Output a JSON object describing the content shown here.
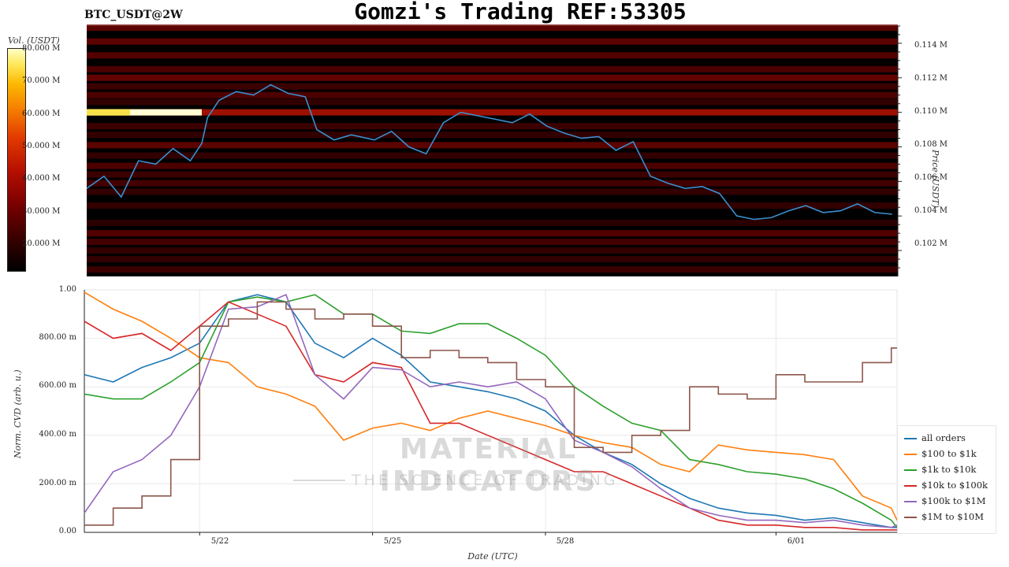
{
  "header": {
    "symbol": "BTC_USDT@2W",
    "title": "Gomzi's Trading REF:53305"
  },
  "colors": {
    "heatmap_background": "#000000",
    "price_line": "#3b8fd0",
    "grid": "#e9e9e9"
  },
  "chart_data": [
    {
      "type": "heatmap",
      "title": "Gomzi's Trading REF:53305",
      "colorbar_label": "Vol. (USDT)",
      "colorbar_ticks": [
        "20.000 M",
        "30.000 M",
        "40.000 M",
        "50.000 M",
        "60.000 M",
        "70.000 M",
        "80.000 M"
      ],
      "ylabel": "Price (USDT)",
      "y_ticks": [
        "0.102 M",
        "0.104 M",
        "0.106 M",
        "0.108 M",
        "0.110 M",
        "0.112 M",
        "0.114 M"
      ],
      "ylim": [
        100500,
        115000
      ],
      "price_series": {
        "name": "price",
        "x_days": [
          0,
          0.3,
          0.6,
          0.9,
          1.2,
          1.5,
          1.8,
          2.0,
          2.1,
          2.3,
          2.6,
          2.9,
          3.2,
          3.5,
          3.8,
          4.0,
          4.3,
          4.6,
          5.0,
          5.3,
          5.6,
          5.9,
          6.2,
          6.5,
          6.8,
          7.1,
          7.4,
          7.7,
          8.0,
          8.3,
          8.6,
          8.9,
          9.2,
          9.5,
          9.8,
          10.1,
          10.4,
          10.7,
          11.0,
          11.3,
          11.6,
          11.9,
          12.2,
          12.5,
          12.8,
          13.1,
          13.4,
          13.7,
          14.0
        ],
        "values": [
          105600,
          106300,
          105100,
          107200,
          107000,
          107900,
          107200,
          108200,
          109700,
          110700,
          111200,
          111000,
          111600,
          111100,
          110900,
          109000,
          108400,
          108700,
          108400,
          108900,
          108000,
          107600,
          109400,
          110000,
          109800,
          109600,
          109400,
          109900,
          109200,
          108800,
          108500,
          108600,
          107800,
          108300,
          106300,
          105900,
          105600,
          105700,
          105300,
          104000,
          103800,
          103900,
          104300,
          104600,
          104200,
          104300,
          104700,
          104200,
          104100
        ]
      },
      "volume_bands": [
        {
          "price": 114900,
          "level": 0.55
        },
        {
          "price": 114100,
          "level": 0.55
        },
        {
          "price": 113300,
          "level": 0.5
        },
        {
          "price": 112500,
          "level": 0.45
        },
        {
          "price": 112000,
          "level": 0.6
        },
        {
          "price": 111500,
          "level": 0.35
        },
        {
          "price": 111000,
          "level": 0.45
        },
        {
          "price": 110600,
          "level": 0.3
        },
        {
          "price": 110000,
          "level": 1.0
        },
        {
          "price": 109200,
          "level": 0.35
        },
        {
          "price": 108700,
          "level": 0.3
        },
        {
          "price": 108100,
          "level": 0.55
        },
        {
          "price": 107500,
          "level": 0.3
        },
        {
          "price": 106900,
          "level": 0.45
        },
        {
          "price": 106400,
          "level": 0.35
        },
        {
          "price": 105900,
          "level": 0.4
        },
        {
          "price": 105400,
          "level": 0.3
        },
        {
          "price": 104600,
          "level": 0.3
        },
        {
          "price": 103600,
          "level": 0.25
        },
        {
          "price": 103000,
          "level": 0.5
        },
        {
          "price": 102500,
          "level": 0.4
        },
        {
          "price": 102000,
          "level": 0.3
        },
        {
          "price": 101500,
          "level": 0.3
        },
        {
          "price": 100900,
          "level": 0.35
        }
      ]
    },
    {
      "type": "line",
      "xlabel": "Date (UTC)",
      "ylabel": "Norm. CVD (arb. u.)",
      "x_ticks": [
        "5/22",
        "5/25",
        "5/28",
        "6/01"
      ],
      "x_tick_days": [
        2,
        5,
        8,
        12
      ],
      "y_ticks": [
        "0.00",
        "200.00 m",
        "400.00 m",
        "600.00 m",
        "800.00 m",
        "1.00"
      ],
      "ylim": [
        0,
        1
      ],
      "xlim_days": [
        0,
        14.1
      ],
      "series": [
        {
          "name": "all orders",
          "color": "#1f77b4",
          "x": [
            0,
            0.5,
            1,
            1.5,
            2,
            2.5,
            3,
            3.5,
            4,
            4.5,
            5,
            5.5,
            6,
            6.5,
            7,
            7.5,
            8,
            8.5,
            9,
            9.5,
            10,
            10.5,
            11,
            11.5,
            12,
            12.5,
            13,
            13.5,
            14,
            14.1
          ],
          "y": [
            0.65,
            0.62,
            0.68,
            0.72,
            0.78,
            0.95,
            0.98,
            0.95,
            0.78,
            0.72,
            0.8,
            0.73,
            0.62,
            0.6,
            0.58,
            0.55,
            0.5,
            0.4,
            0.33,
            0.28,
            0.2,
            0.14,
            0.1,
            0.08,
            0.07,
            0.05,
            0.06,
            0.04,
            0.02,
            0.02
          ]
        },
        {
          "name": "$100 to $1k",
          "color": "#ff7f0e",
          "x": [
            0,
            0.5,
            1,
            1.5,
            2,
            2.5,
            3,
            3.5,
            4,
            4.5,
            5,
            5.5,
            6,
            6.5,
            7,
            7.5,
            8,
            8.5,
            9,
            9.5,
            10,
            10.5,
            11,
            11.5,
            12,
            12.5,
            13,
            13.5,
            14,
            14.1
          ],
          "y": [
            0.99,
            0.92,
            0.87,
            0.8,
            0.72,
            0.7,
            0.6,
            0.57,
            0.52,
            0.38,
            0.43,
            0.45,
            0.42,
            0.47,
            0.5,
            0.47,
            0.44,
            0.4,
            0.37,
            0.35,
            0.28,
            0.25,
            0.36,
            0.34,
            0.33,
            0.32,
            0.3,
            0.15,
            0.1,
            0.05
          ]
        },
        {
          "name": "$1k to $10k",
          "color": "#2ca02c",
          "x": [
            0,
            0.5,
            1,
            1.5,
            2,
            2.5,
            3,
            3.5,
            4,
            4.5,
            5,
            5.5,
            6,
            6.5,
            7,
            7.5,
            8,
            8.5,
            9,
            9.5,
            10,
            10.5,
            11,
            11.5,
            12,
            12.5,
            13,
            13.5,
            14,
            14.1
          ],
          "y": [
            0.57,
            0.55,
            0.55,
            0.62,
            0.7,
            0.95,
            0.97,
            0.95,
            0.98,
            0.9,
            0.9,
            0.83,
            0.82,
            0.86,
            0.86,
            0.8,
            0.73,
            0.6,
            0.52,
            0.45,
            0.42,
            0.3,
            0.28,
            0.25,
            0.24,
            0.22,
            0.18,
            0.12,
            0.05,
            0.02
          ]
        },
        {
          "name": "$10k to $100k",
          "color": "#d62728",
          "x": [
            0,
            0.5,
            1,
            1.5,
            2,
            2.5,
            3,
            3.5,
            4,
            4.5,
            5,
            5.5,
            6,
            6.5,
            7,
            7.5,
            8,
            8.5,
            9,
            9.5,
            10,
            10.5,
            11,
            11.5,
            12,
            12.5,
            13,
            13.5,
            14,
            14.1
          ],
          "y": [
            0.87,
            0.8,
            0.82,
            0.75,
            0.85,
            0.95,
            0.9,
            0.85,
            0.65,
            0.62,
            0.7,
            0.68,
            0.45,
            0.45,
            0.4,
            0.35,
            0.3,
            0.25,
            0.25,
            0.2,
            0.15,
            0.1,
            0.05,
            0.03,
            0.03,
            0.02,
            0.02,
            0.01,
            0.01,
            0.01
          ]
        },
        {
          "name": "$100k to $1M",
          "color": "#9467bd",
          "x": [
            0,
            0.5,
            1,
            1.5,
            2,
            2.5,
            3,
            3.5,
            4,
            4.5,
            5,
            5.5,
            6,
            6.5,
            7,
            7.5,
            8,
            8.5,
            9,
            9.5,
            10,
            10.5,
            11,
            11.5,
            12,
            12.5,
            13,
            13.5,
            14,
            14.1
          ],
          "y": [
            0.08,
            0.25,
            0.3,
            0.4,
            0.6,
            0.92,
            0.93,
            0.98,
            0.65,
            0.55,
            0.68,
            0.67,
            0.6,
            0.62,
            0.6,
            0.62,
            0.55,
            0.38,
            0.33,
            0.27,
            0.18,
            0.1,
            0.07,
            0.05,
            0.05,
            0.04,
            0.05,
            0.03,
            0.02,
            0.03
          ]
        },
        {
          "name": "$1M to $10M",
          "color": "#8c564b",
          "x": [
            0,
            0.5,
            1,
            1.5,
            2,
            2.5,
            3,
            3.5,
            4,
            4.5,
            5,
            5.5,
            6,
            6.5,
            7,
            7.5,
            8,
            8.5,
            9,
            9.5,
            10,
            10.5,
            11,
            11.5,
            12,
            12.5,
            13,
            13.5,
            14,
            14.1
          ],
          "y": [
            0.03,
            0.1,
            0.15,
            0.3,
            0.85,
            0.88,
            0.95,
            0.92,
            0.88,
            0.9,
            0.85,
            0.72,
            0.75,
            0.72,
            0.7,
            0.63,
            0.6,
            0.35,
            0.33,
            0.4,
            0.42,
            0.6,
            0.57,
            0.55,
            0.65,
            0.62,
            0.62,
            0.7,
            0.76,
            0.76
          ]
        }
      ]
    }
  ],
  "watermark": {
    "brand": "MATERIAL INDICATORS",
    "tagline": "THE SCIENCE OF TRADING"
  }
}
